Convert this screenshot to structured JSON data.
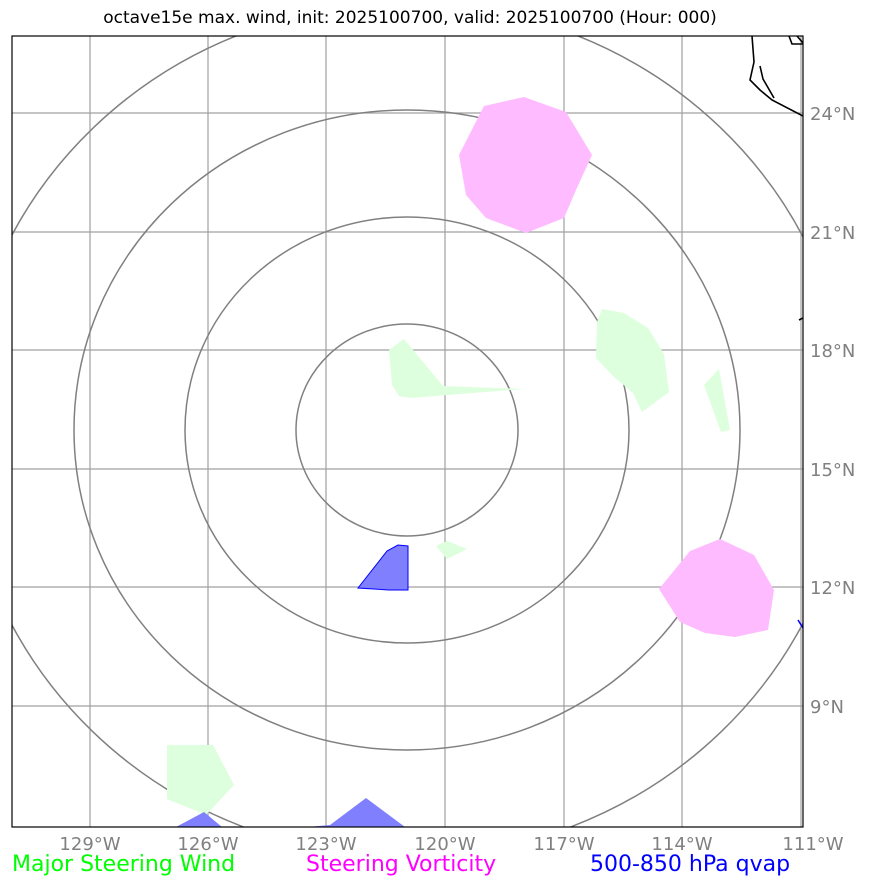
{
  "title": "octave15e max. wind, init: 2025100700, valid: 2025100700 (Hour: 000)",
  "latitude_labels": [
    "24°N",
    "21°N",
    "18°N",
    "15°N",
    "12°N",
    "9°N"
  ],
  "longitude_labels": [
    "129°W",
    "126°W",
    "123°W",
    "120°W",
    "117°W",
    "114°W",
    "111°W"
  ],
  "legend": {
    "wind": "Major Steering Wind",
    "vorticity": "Steering Vorticity",
    "qvap": "500-850 hPa qvap"
  },
  "colors": {
    "wind": "#00ff00",
    "wind_fill": "#ddffdd",
    "vorticity": "#ff00ff",
    "vorticity_fill": "#ffbbff",
    "qvap": "#0000ff",
    "qvap_fill": "#8080ff",
    "grid": "#a0a0a0",
    "rings": "#808080"
  }
}
